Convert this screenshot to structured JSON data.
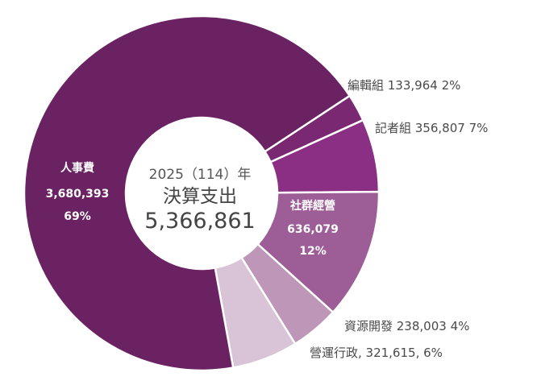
{
  "chart_data": {
    "type": "pie",
    "center": {
      "line1": "2025（114）年",
      "line2": "決算支出",
      "line3": "5,366,861"
    },
    "slices": [
      {
        "name": "人事費",
        "value": 3680393,
        "value_label": "3,680,393",
        "percent_label": "69%",
        "color": "#6a2263",
        "label_text": ""
      },
      {
        "name": "編輯組",
        "value": 133964,
        "value_label": "133,964",
        "percent_label": "2%",
        "color": "#7a2872",
        "label_text": "編輯組 133,964 2%"
      },
      {
        "name": "記者組",
        "value": 356807,
        "value_label": "356,807",
        "percent_label": "7%",
        "color": "#8a2f84",
        "label_text": "記者組 356,807 7%"
      },
      {
        "name": "社群經營",
        "value": 636079,
        "value_label": "636,079",
        "percent_label": "12%",
        "color": "#9d5d97",
        "label_text": ""
      },
      {
        "name": "資源開發",
        "value": 238003,
        "value_label": "238,003",
        "percent_label": "4%",
        "color": "#bd96b8",
        "label_text": "資源開發 238,003 4%"
      },
      {
        "name": "營運行政",
        "value": 321615,
        "value_label": "321,615",
        "percent_label": "6%",
        "color": "#d9c3d6",
        "label_text": "營運行政, 321,615, 6%"
      }
    ]
  }
}
